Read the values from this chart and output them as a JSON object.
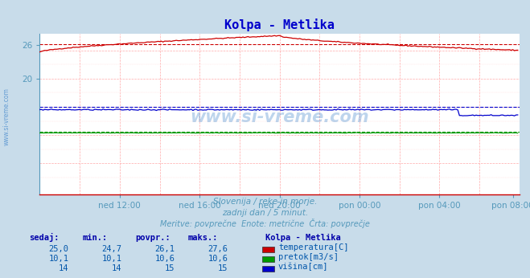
{
  "title": "Kolpa - Metlika",
  "title_color": "#0000cc",
  "bg_color": "#c8dcea",
  "plot_bg_color": "#ffffff",
  "subtitle_lines": [
    "Slovenija / reke in morje.",
    "zadnji dan / 5 minut.",
    "Meritve: povprečne  Enote: metrične  Črta: povprečje"
  ],
  "xlabel_ticks": [
    "ned 12:00",
    "ned 16:00",
    "ned 20:00",
    "pon 00:00",
    "pon 04:00",
    "pon 08:00"
  ],
  "yticks": [
    20,
    26
  ],
  "ylim": [
    -0.5,
    28
  ],
  "xlim": [
    0,
    288
  ],
  "watermark": "www.si-vreme.com",
  "watermark_color": "#4488cc",
  "legend_title": "Kolpa - Metlika",
  "legend_entries": [
    {
      "label": "temperatura[C]",
      "color": "#cc0000"
    },
    {
      "label": "pretok[m3/s]",
      "color": "#009900"
    },
    {
      "label": "višina[cm]",
      "color": "#0000cc"
    }
  ],
  "table_headers": [
    "sedaj:",
    "min.:",
    "povpr.:",
    "maks.:"
  ],
  "table_data": [
    [
      "25,0",
      "24,7",
      "26,1",
      "27,6"
    ],
    [
      "10,1",
      "10,1",
      "10,6",
      "10,6"
    ],
    [
      "14",
      "14",
      "15",
      "15"
    ]
  ],
  "temp_avg": 26.1,
  "temp_min": 24.7,
  "temp_max": 27.6,
  "temp_start": 24.7,
  "temp_peak": 27.6,
  "temp_end": 25.0,
  "temp_peak_x": 144,
  "pretok_val": 10.4,
  "pretok_avg": 10.6,
  "visina_val": 14.5,
  "visina_drop": 13.5,
  "visina_drop_start": 252,
  "visina_avg": 15,
  "tick_color": "#5599bb",
  "header_color": "#0000aa",
  "val_color": "#0055aa",
  "grid_color": "#ffaaaa",
  "minor_grid_color": "#ffdddd",
  "spine_bottom_color": "#cc0000",
  "n_points": 288
}
